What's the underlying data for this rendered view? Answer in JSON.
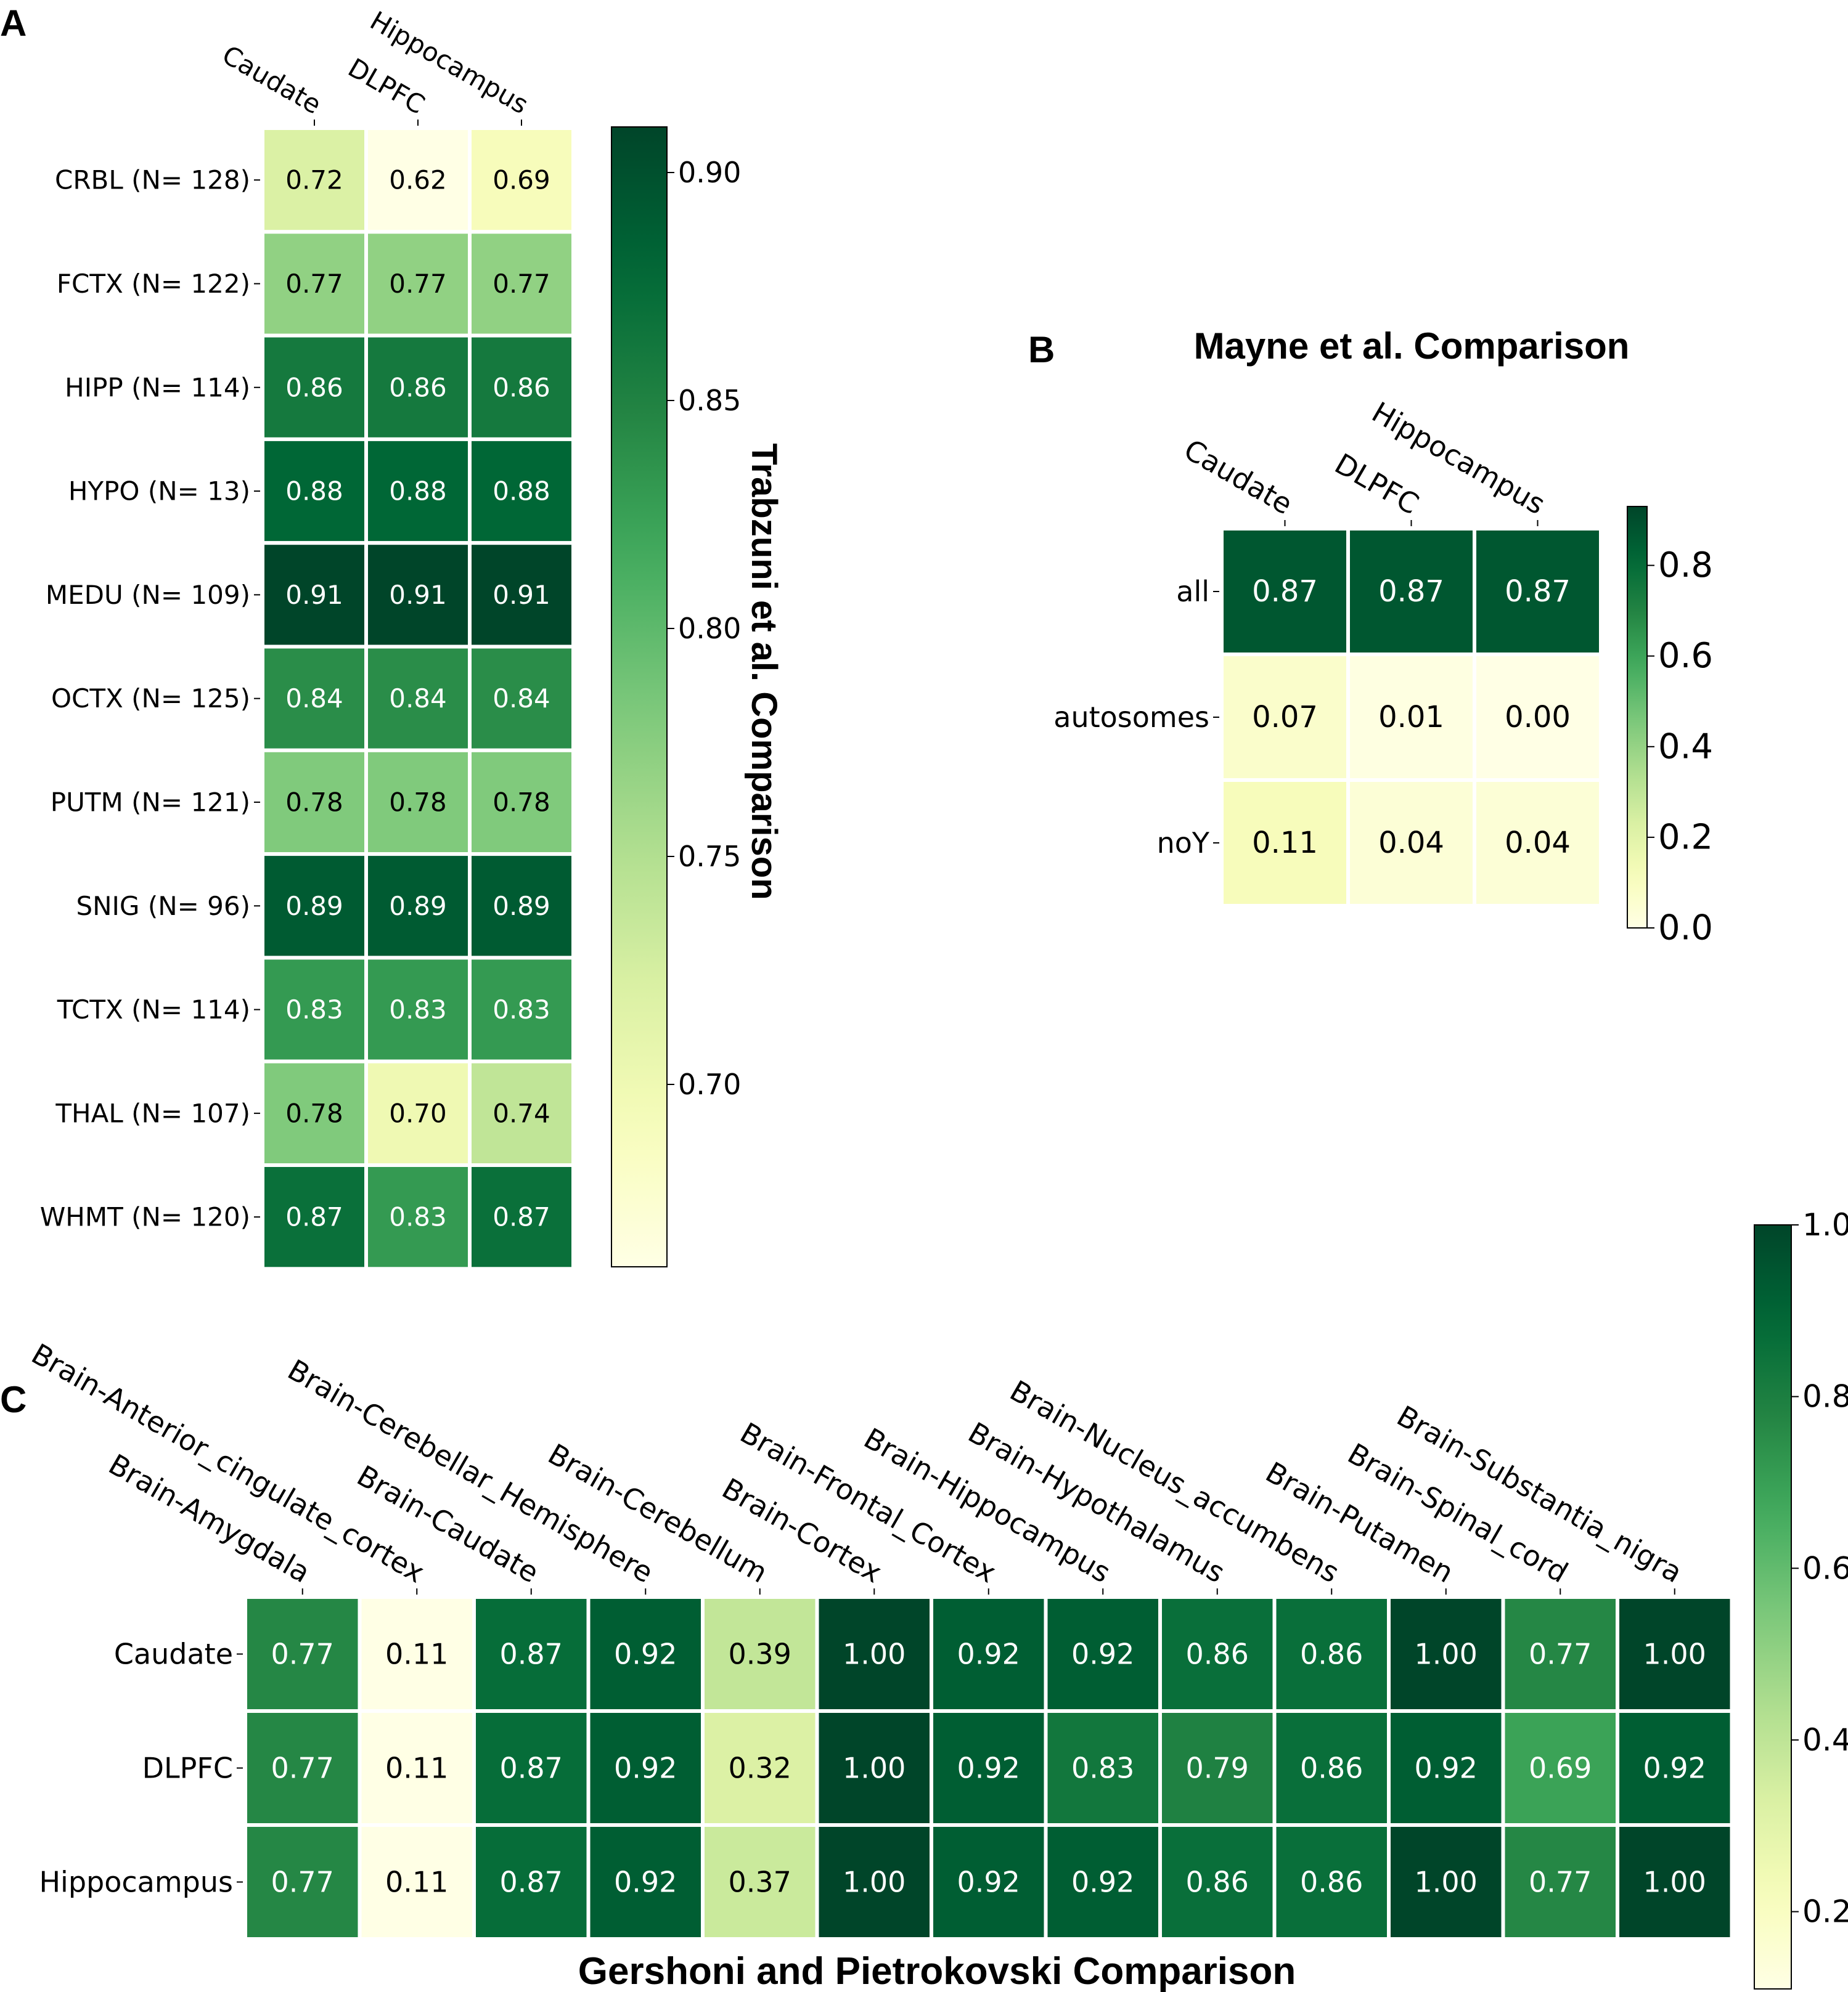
{
  "colors": {
    "scale": [
      "#ffffe5",
      "#f7fcb9",
      "#d9f0a3",
      "#addd8e",
      "#78c679",
      "#41ab5d",
      "#238443",
      "#006837",
      "#004529"
    ]
  },
  "chart_data": [
    {
      "type": "heatmap",
      "panel": "A",
      "title": "",
      "colorbar_label": "Trabzuni et al. Comparison",
      "columns": [
        "Caudate",
        "DLPFC",
        "Hippocampus"
      ],
      "rows": [
        "CRBL (N= 128)",
        "FCTX (N= 122)",
        "HIPP (N= 114)",
        "HYPO (N= 13)",
        "MEDU (N= 109)",
        "OCTX (N= 125)",
        "PUTM (N= 121)",
        "SNIG (N= 96)",
        "TCTX (N= 114)",
        "THAL (N= 107)",
        "WHMT (N= 120)"
      ],
      "values": [
        [
          0.72,
          0.62,
          0.69
        ],
        [
          0.77,
          0.77,
          0.77
        ],
        [
          0.86,
          0.86,
          0.86
        ],
        [
          0.88,
          0.88,
          0.88
        ],
        [
          0.91,
          0.91,
          0.91
        ],
        [
          0.84,
          0.84,
          0.84
        ],
        [
          0.78,
          0.78,
          0.78
        ],
        [
          0.89,
          0.89,
          0.89
        ],
        [
          0.83,
          0.83,
          0.83
        ],
        [
          0.78,
          0.7,
          0.74
        ],
        [
          0.87,
          0.83,
          0.87
        ]
      ],
      "colorbar_range": [
        0.66,
        0.91
      ],
      "colorbar_ticks": [
        0.7,
        0.75,
        0.8,
        0.85,
        0.9
      ],
      "colorbar_tick_labels": [
        "0.70",
        "0.75",
        "0.80",
        "0.85",
        "0.90"
      ]
    },
    {
      "type": "heatmap",
      "panel": "B",
      "title": "Mayne et al. Comparison",
      "colorbar_label": "",
      "columns": [
        "Caudate",
        "DLPFC",
        "Hippocampus"
      ],
      "rows": [
        "all",
        "autosomes",
        "noY"
      ],
      "values": [
        [
          0.87,
          0.87,
          0.87
        ],
        [
          0.07,
          0.01,
          0.0
        ],
        [
          0.11,
          0.04,
          0.04
        ]
      ],
      "colorbar_range": [
        0.0,
        0.93
      ],
      "colorbar_ticks": [
        0.0,
        0.2,
        0.4,
        0.6,
        0.8
      ],
      "colorbar_tick_labels": [
        "0.0",
        "0.2",
        "0.4",
        "0.6",
        "0.8"
      ]
    },
    {
      "type": "heatmap",
      "panel": "C",
      "title": "",
      "xlabel": "Gershoni and Pietrokovski Comparison",
      "colorbar_label": "",
      "columns": [
        "Brain-Amygdala",
        "Brain-Anterior_cingulate_cortex",
        "Brain-Caudate",
        "Brain-Cerebellar_Hemisphere",
        "Brain-Cerebellum",
        "Brain-Cortex",
        "Brain-Frontal_Cortex",
        "Brain-Hippocampus",
        "Brain-Hypothalamus",
        "Brain-Nucleus_accumbens",
        "Brain-Putamen",
        "Brain-Spinal_cord",
        "Brain-Substantia_nigra"
      ],
      "rows": [
        "Caudate",
        "DLPFC",
        "Hippocampus"
      ],
      "values": [
        [
          0.77,
          0.11,
          0.87,
          0.92,
          0.39,
          1.0,
          0.92,
          0.92,
          0.86,
          0.86,
          1.0,
          0.77,
          1.0
        ],
        [
          0.77,
          0.11,
          0.87,
          0.92,
          0.32,
          1.0,
          0.92,
          0.83,
          0.79,
          0.86,
          0.92,
          0.69,
          0.92
        ],
        [
          0.77,
          0.11,
          0.87,
          0.92,
          0.37,
          1.0,
          0.92,
          0.92,
          0.86,
          0.86,
          1.0,
          0.77,
          1.0
        ]
      ],
      "colorbar_range": [
        0.11,
        1.0
      ],
      "colorbar_ticks": [
        0.2,
        0.4,
        0.6,
        0.8,
        1.0
      ],
      "colorbar_tick_labels": [
        "0.2",
        "0.4",
        "0.6",
        "0.8",
        "1.0"
      ]
    }
  ],
  "panel_letters": [
    "A",
    "B",
    "C"
  ]
}
